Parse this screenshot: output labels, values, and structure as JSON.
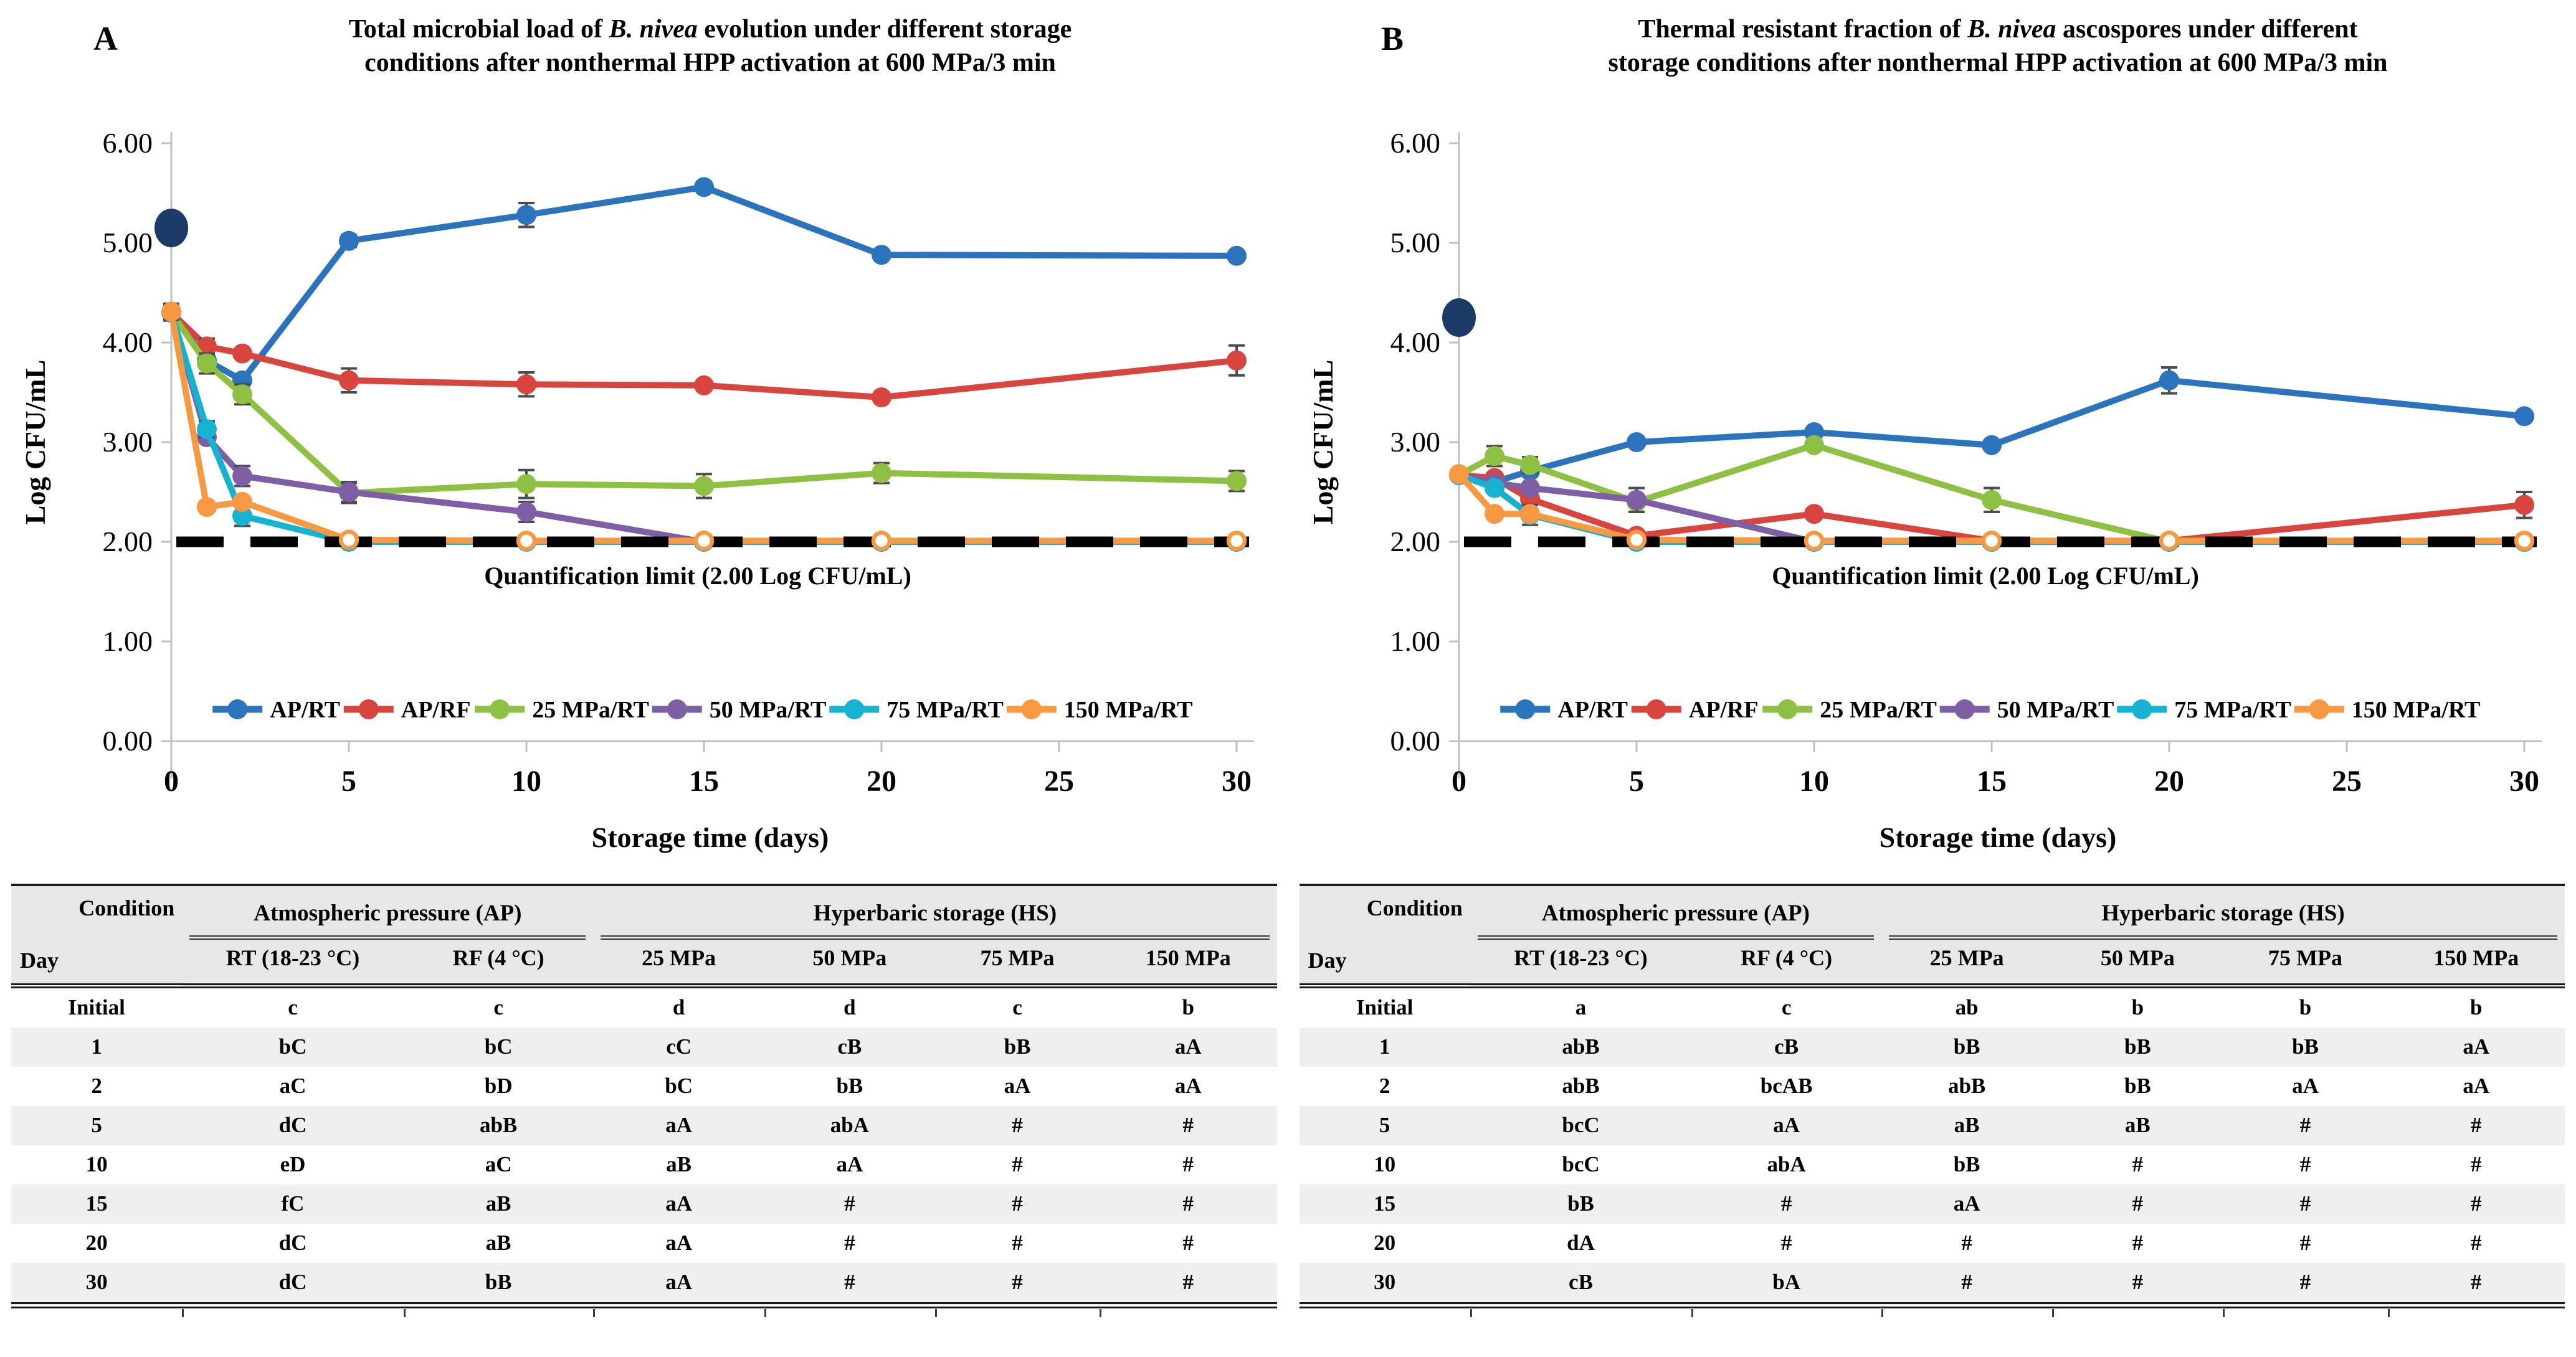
{
  "chart_data": [
    {
      "type": "line",
      "panel_label": "A",
      "title_lines": [
        [
          {
            "t": "Total microbial load of ",
            "italic": false
          },
          {
            "t": "B. nivea",
            "italic": true
          },
          {
            "t": " evolution under different storage",
            "italic": false
          }
        ],
        [
          {
            "t": "conditions after nonthermal HPP activation at 600 MPa/3 min",
            "italic": false
          }
        ]
      ],
      "xlabel": "Storage time (days)",
      "ylabel": "Log CFU/mL",
      "x": [
        0,
        1,
        2,
        5,
        10,
        15,
        20,
        30
      ],
      "xticks": [
        0,
        5,
        10,
        15,
        20,
        25,
        30
      ],
      "ylim": [
        0,
        6
      ],
      "ytick_step": 1,
      "quant_limit": {
        "value": 2.0,
        "label": "Quantification limit (2.00 Log CFU/mL)"
      },
      "initial_point": {
        "x": 0,
        "value": 5.15,
        "color": "#1B3A66"
      },
      "series": [
        {
          "name": "AP/RT",
          "color": "#2C73BD",
          "values": [
            4.3,
            3.82,
            3.62,
            5.02,
            5.28,
            5.56,
            4.88,
            4.87
          ],
          "err": [
            0.08,
            0,
            0,
            0.06,
            0.12,
            0,
            0,
            0
          ]
        },
        {
          "name": "AP/RF",
          "color": "#D8453F",
          "values": [
            4.3,
            3.96,
            3.89,
            3.62,
            3.58,
            3.57,
            3.45,
            3.82
          ],
          "err": [
            0,
            0.08,
            0,
            0.12,
            0.12,
            0,
            0,
            0.15
          ]
        },
        {
          "name": "25 MPa/RT",
          "color": "#8DC043",
          "values": [
            4.3,
            3.79,
            3.48,
            2.49,
            2.58,
            2.56,
            2.69,
            2.61
          ],
          "err": [
            0,
            0.1,
            0.1,
            0.1,
            0.14,
            0.12,
            0.1,
            0.1
          ]
        },
        {
          "name": "50 MPa/RT",
          "color": "#7E5FA5",
          "values": [
            4.3,
            3.05,
            2.66,
            2.5,
            2.3,
            2.0,
            2.0,
            2.0
          ],
          "err": [
            0,
            0,
            0.1,
            0.1,
            0.1,
            0,
            0,
            0
          ]
        },
        {
          "name": "75 MPa/RT",
          "color": "#17B1D2",
          "values": [
            4.3,
            3.13,
            2.26,
            2.0,
            2.0,
            2.0,
            2.0,
            2.0
          ],
          "err": [
            0,
            0.08,
            0.1,
            0,
            0,
            0,
            0,
            0
          ]
        },
        {
          "name": "150 MPa/RT",
          "color": "#F79843",
          "values": [
            4.31,
            2.35,
            2.4,
            2.02,
            2.01,
            2.01,
            2.01,
            2.01
          ],
          "err": [
            0.08,
            0,
            0,
            0,
            0,
            0,
            0,
            0
          ],
          "open_from_index": 3
        }
      ]
    },
    {
      "type": "line",
      "panel_label": "B",
      "title_lines": [
        [
          {
            "t": "Thermal resistant fraction of ",
            "italic": false
          },
          {
            "t": "B. nivea",
            "italic": true
          },
          {
            "t": " ascospores under different",
            "italic": false
          }
        ],
        [
          {
            "t": "storage conditions after nonthermal HPP activation at 600 MPa/3 min",
            "italic": false
          }
        ]
      ],
      "xlabel": "Storage time (days)",
      "ylabel": "Log CFU/mL",
      "x": [
        0,
        1,
        2,
        5,
        10,
        15,
        20,
        30
      ],
      "xticks": [
        0,
        5,
        10,
        15,
        20,
        25,
        30
      ],
      "ylim": [
        0,
        6
      ],
      "ytick_step": 1,
      "quant_limit": {
        "value": 2.0,
        "label": "Quantification limit (2.00 Log CFU/mL)"
      },
      "initial_point": {
        "x": 0,
        "value": 4.25,
        "color": "#1B3A66"
      },
      "series": [
        {
          "name": "AP/RT",
          "color": "#2C73BD",
          "values": [
            2.67,
            2.6,
            2.71,
            3.0,
            3.1,
            2.97,
            3.62,
            3.26
          ],
          "err": [
            0,
            0,
            0,
            0,
            0,
            0,
            0.13,
            0
          ]
        },
        {
          "name": "AP/RF",
          "color": "#D8453F",
          "values": [
            2.67,
            2.64,
            2.43,
            2.06,
            2.28,
            2.01,
            2.01,
            2.37
          ],
          "err": [
            0,
            0,
            0,
            0,
            0,
            0,
            0,
            0.13
          ]
        },
        {
          "name": "25 MPa/RT",
          "color": "#8DC043",
          "values": [
            2.67,
            2.86,
            2.77,
            2.4,
            2.97,
            2.42,
            2.0,
            2.0
          ],
          "err": [
            0,
            0.1,
            0.08,
            0,
            0,
            0.12,
            0,
            0
          ]
        },
        {
          "name": "50 MPa/RT",
          "color": "#7E5FA5",
          "values": [
            2.67,
            2.59,
            2.54,
            2.42,
            2.0,
            2.0,
            2.0,
            2.0
          ],
          "err": [
            0,
            0,
            0,
            0.12,
            0,
            0,
            0,
            0
          ]
        },
        {
          "name": "75 MPa/RT",
          "color": "#17B1D2",
          "values": [
            2.67,
            2.54,
            2.27,
            2.0,
            2.0,
            2.0,
            2.0,
            2.0
          ],
          "err": [
            0,
            0,
            0.1,
            0,
            0,
            0,
            0,
            0
          ]
        },
        {
          "name": "150 MPa/RT",
          "color": "#F79843",
          "values": [
            2.68,
            2.28,
            2.28,
            2.02,
            2.01,
            2.01,
            2.01,
            2.01
          ],
          "err": [
            0,
            0,
            0,
            0,
            0,
            0,
            0,
            0
          ],
          "open_from_index": 3
        }
      ]
    }
  ],
  "tables": [
    {
      "corner": {
        "top": "Condition",
        "bottom": "Day"
      },
      "groups": [
        {
          "label": "Atmospheric pressure (AP)",
          "span": 2
        },
        {
          "label": "Hyperbaric storage (HS)",
          "span": 4
        }
      ],
      "columns": [
        "RT (18-23 °C)",
        "RF (4 °C)",
        "25 MPa",
        "50 MPa",
        "75 MPa",
        "150 MPa"
      ],
      "rows": [
        {
          "day": "Initial",
          "cells": [
            "c",
            "c",
            "d",
            "d",
            "c",
            "b"
          ]
        },
        {
          "day": "1",
          "cells": [
            "bC",
            "bC",
            "cC",
            "cB",
            "bB",
            "aA"
          ]
        },
        {
          "day": "2",
          "cells": [
            "aC",
            "bD",
            "bC",
            "bB",
            "aA",
            "aA"
          ]
        },
        {
          "day": "5",
          "cells": [
            "dC",
            "abB",
            "aA",
            "abA",
            "#",
            "#"
          ]
        },
        {
          "day": "10",
          "cells": [
            "eD",
            "aC",
            "aB",
            "aA",
            "#",
            "#"
          ]
        },
        {
          "day": "15",
          "cells": [
            "fC",
            "aB",
            "aA",
            "#",
            "#",
            "#"
          ]
        },
        {
          "day": "20",
          "cells": [
            "dC",
            "aB",
            "aA",
            "#",
            "#",
            "#"
          ]
        },
        {
          "day": "30",
          "cells": [
            "dC",
            "bB",
            "aA",
            "#",
            "#",
            "#"
          ]
        }
      ]
    },
    {
      "corner": {
        "top": "Condition",
        "bottom": "Day"
      },
      "groups": [
        {
          "label": "Atmospheric pressure (AP)",
          "span": 2
        },
        {
          "label": "Hyperbaric storage (HS)",
          "span": 4
        }
      ],
      "columns": [
        "RT (18-23 °C)",
        "RF (4 °C)",
        "25 MPa",
        "50 MPa",
        "75 MPa",
        "150 MPa"
      ],
      "rows": [
        {
          "day": "Initial",
          "cells": [
            "a",
            "c",
            "ab",
            "b",
            "b",
            "b"
          ]
        },
        {
          "day": "1",
          "cells": [
            "abB",
            "cB",
            "bB",
            "bB",
            "bB",
            "aA"
          ]
        },
        {
          "day": "2",
          "cells": [
            "abB",
            "bcAB",
            "abB",
            "bB",
            "aA",
            "aA"
          ]
        },
        {
          "day": "5",
          "cells": [
            "bcC",
            "aA",
            "aB",
            "aB",
            "#",
            "#"
          ]
        },
        {
          "day": "10",
          "cells": [
            "bcC",
            "abA",
            "bB",
            "#",
            "#",
            "#"
          ]
        },
        {
          "day": "15",
          "cells": [
            "bB",
            "#",
            "aA",
            "#",
            "#",
            "#"
          ]
        },
        {
          "day": "20",
          "cells": [
            "dA",
            "#",
            "#",
            "#",
            "#",
            "#"
          ]
        },
        {
          "day": "30",
          "cells": [
            "cB",
            "bA",
            "#",
            "#",
            "#",
            "#"
          ]
        }
      ]
    }
  ],
  "style": {
    "axis_color": "#BFBFBF",
    "errorbar_color": "#4d4d4d",
    "limit_line_color": "#000000"
  }
}
